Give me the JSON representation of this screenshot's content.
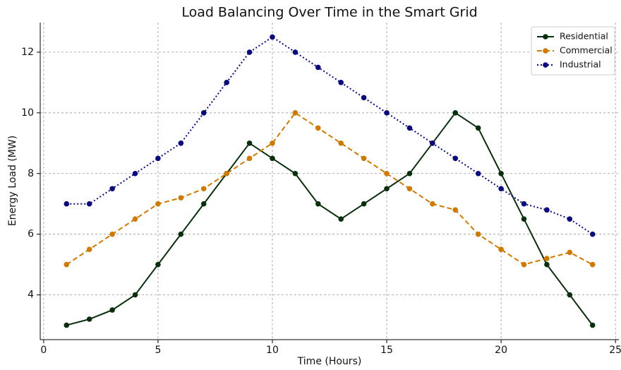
{
  "chart_data": {
    "type": "line",
    "title": "Load Balancing Over Time in the Smart Grid",
    "xlabel": "Time (Hours)",
    "ylabel": "Energy Load (MW)",
    "x": [
      1,
      2,
      3,
      4,
      5,
      6,
      7,
      8,
      9,
      10,
      11,
      12,
      13,
      14,
      15,
      16,
      17,
      18,
      19,
      20,
      21,
      22,
      23,
      24
    ],
    "series": [
      {
        "name": "Residential",
        "color": "#0b2e0f",
        "linestyle": "solid",
        "values": [
          3,
          3.2,
          3.5,
          4,
          5,
          6,
          7,
          8,
          9,
          8.5,
          8,
          7,
          6.5,
          7,
          7.5,
          8,
          9,
          10,
          9.5,
          8,
          6.5,
          5,
          4,
          3
        ]
      },
      {
        "name": "Commercial",
        "color": "#cc7a00",
        "linestyle": "dashed",
        "values": [
          5,
          5.5,
          6,
          6.5,
          7,
          7.2,
          7.5,
          8,
          8.5,
          9,
          10,
          9.5,
          9,
          8.5,
          8,
          7.5,
          7,
          6.8,
          6,
          5.5,
          5,
          5.2,
          5.4,
          5
        ]
      },
      {
        "name": "Industrial",
        "color": "#0a0a78",
        "linestyle": "dotted",
        "values": [
          7,
          7,
          7.5,
          8,
          8.5,
          9,
          10,
          11,
          12,
          12.5,
          12,
          11.5,
          11,
          10.5,
          10,
          9.5,
          9,
          8.5,
          8,
          7.5,
          7,
          6.8,
          6.5,
          6
        ]
      }
    ],
    "xlim": [
      -0.15,
      25.15
    ],
    "ylim": [
      2.525,
      12.975
    ],
    "xticks": [
      0,
      5,
      10,
      15,
      20,
      25
    ],
    "yticks": [
      4,
      6,
      8,
      10,
      12
    ],
    "grid": true,
    "legend": "upper right"
  }
}
